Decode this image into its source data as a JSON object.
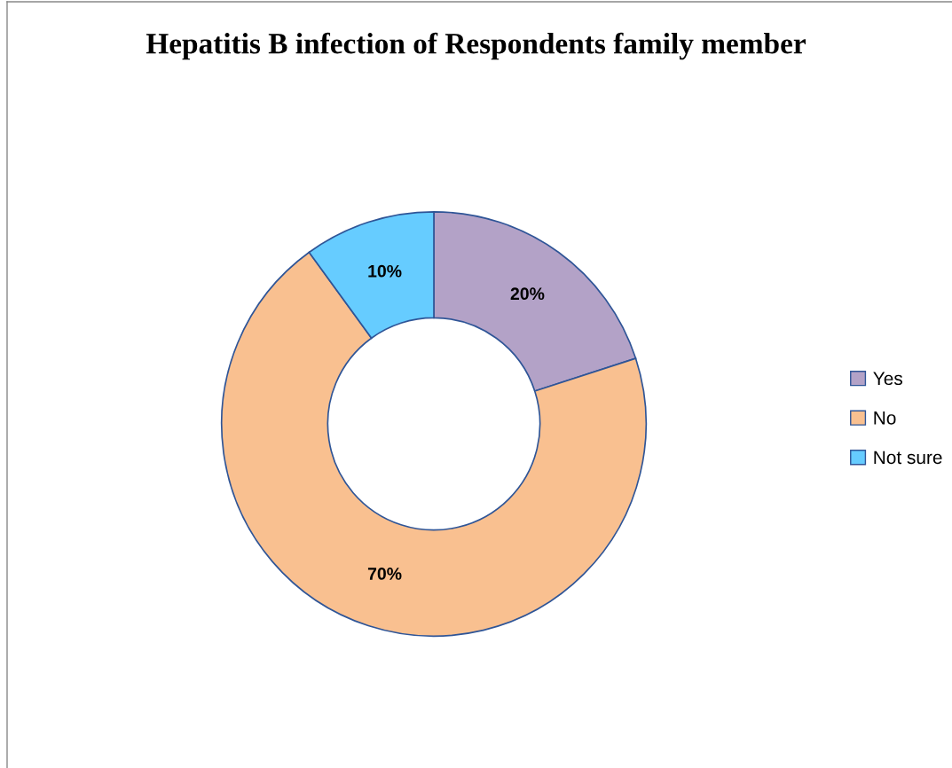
{
  "chart_data": {
    "type": "donut",
    "title": "Hepatitis B infection of Respondents family member",
    "categories": [
      "Yes",
      "No",
      "Not sure"
    ],
    "values": [
      20,
      70,
      10
    ],
    "colors": [
      "#b3a2c7",
      "#f9c090",
      "#66ccff"
    ],
    "value_labels": [
      "20%",
      "70%",
      "10%"
    ],
    "legend": "right"
  }
}
